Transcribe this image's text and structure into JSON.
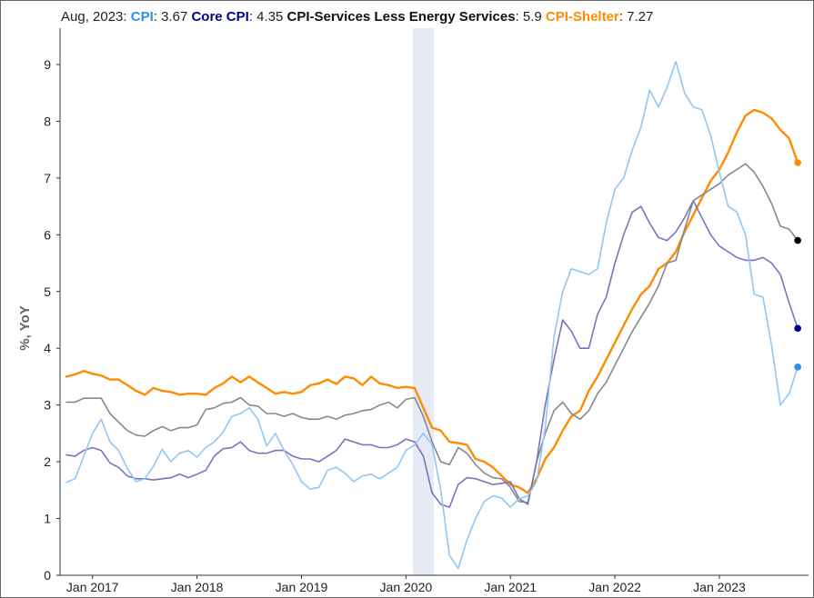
{
  "header": {
    "date": "Aug, 2023:",
    "items": [
      {
        "name": "CPI",
        "value": "3.67"
      },
      {
        "name": "Core CPI",
        "value": "4.35"
      },
      {
        "name": "CPI-Services Less Energy Services",
        "value": "5.9"
      },
      {
        "name": "CPI-Shelter",
        "value": "7.27"
      }
    ]
  },
  "chart_data": {
    "type": "line",
    "title": "Aug, 2023: CPI: 3.67 Core CPI: 4.35 CPI-Services Less Energy Services: 5.9 CPI-Shelter: 7.27",
    "xlabel": "",
    "ylabel": "%, YoY",
    "ylim": [
      0,
      9.8
    ],
    "yticks": [
      0,
      1,
      2,
      3,
      4,
      5,
      6,
      7,
      8,
      9
    ],
    "xticks": [
      {
        "label": "Jan 2017",
        "x": "2017-01"
      },
      {
        "label": "Jan 2018",
        "x": "2018-01"
      },
      {
        "label": "Jan 2019",
        "x": "2019-01"
      },
      {
        "label": "Jan 2020",
        "x": "2020-01"
      },
      {
        "label": "Jan 2021",
        "x": "2021-01"
      },
      {
        "label": "Jan 2022",
        "x": "2022-01"
      },
      {
        "label": "Jan 2023",
        "x": "2023-01"
      }
    ],
    "x_start": "2016-10",
    "x_end": "2023-08",
    "recession_shading": {
      "start": "2020-02",
      "end": "2020-04",
      "color": "#e6ebf3"
    },
    "grid": false,
    "series": [
      {
        "name": "CPI-Shelter",
        "color": "#ff8c00",
        "width": 2.4,
        "values": [
          3.5,
          3.54,
          3.6,
          3.55,
          3.52,
          3.45,
          3.45,
          3.35,
          3.25,
          3.18,
          3.3,
          3.25,
          3.23,
          3.18,
          3.2,
          3.2,
          3.18,
          3.3,
          3.38,
          3.5,
          3.4,
          3.5,
          3.4,
          3.3,
          3.2,
          3.23,
          3.2,
          3.23,
          3.35,
          3.38,
          3.45,
          3.37,
          3.5,
          3.47,
          3.35,
          3.5,
          3.38,
          3.35,
          3.3,
          3.32,
          3.3,
          2.95,
          2.6,
          2.55,
          2.35,
          2.33,
          2.3,
          2.05,
          2.0,
          1.9,
          1.75,
          1.6,
          1.55,
          1.45,
          1.7,
          2.05,
          2.25,
          2.55,
          2.8,
          2.9,
          3.25,
          3.5,
          3.8,
          4.1,
          4.4,
          4.7,
          4.95,
          5.1,
          5.4,
          5.5,
          5.7,
          6.05,
          6.35,
          6.65,
          6.95,
          7.15,
          7.45,
          7.8,
          8.1,
          8.2,
          8.15,
          8.05,
          7.85,
          7.7,
          7.27
        ]
      },
      {
        "name": "CPI-Services Less Energy Services",
        "color": "#888888",
        "width": 1.6,
        "values": [
          3.05,
          3.05,
          3.12,
          3.12,
          3.12,
          2.85,
          2.7,
          2.55,
          2.47,
          2.45,
          2.55,
          2.62,
          2.55,
          2.6,
          2.6,
          2.65,
          2.92,
          2.95,
          3.03,
          3.05,
          3.13,
          3.0,
          2.98,
          2.85,
          2.85,
          2.8,
          2.85,
          2.78,
          2.75,
          2.75,
          2.8,
          2.75,
          2.82,
          2.85,
          2.9,
          2.92,
          3.0,
          3.05,
          2.95,
          3.1,
          3.13,
          2.8,
          2.35,
          2.0,
          1.95,
          2.25,
          2.15,
          1.95,
          1.8,
          1.72,
          1.7,
          1.55,
          1.3,
          1.28,
          2.0,
          2.5,
          2.9,
          3.05,
          2.85,
          2.75,
          2.9,
          3.2,
          3.4,
          3.7,
          4.0,
          4.3,
          4.55,
          4.8,
          5.1,
          5.5,
          5.55,
          6.1,
          6.6,
          6.7,
          6.8,
          6.9,
          7.05,
          7.15,
          7.25,
          7.1,
          6.85,
          6.55,
          6.15,
          6.1,
          5.9
        ]
      },
      {
        "name": "Core CPI",
        "color": "#7b72c0",
        "width": 1.6,
        "values": [
          2.12,
          2.1,
          2.2,
          2.25,
          2.2,
          1.98,
          1.9,
          1.75,
          1.7,
          1.7,
          1.68,
          1.7,
          1.72,
          1.78,
          1.72,
          1.78,
          1.85,
          2.1,
          2.23,
          2.25,
          2.35,
          2.2,
          2.15,
          2.15,
          2.2,
          2.2,
          2.1,
          2.05,
          2.05,
          2.0,
          2.1,
          2.2,
          2.4,
          2.35,
          2.3,
          2.3,
          2.25,
          2.25,
          2.3,
          2.4,
          2.35,
          2.1,
          1.45,
          1.25,
          1.2,
          1.6,
          1.72,
          1.7,
          1.65,
          1.6,
          1.62,
          1.65,
          1.35,
          1.25,
          2.0,
          3.0,
          3.8,
          4.5,
          4.3,
          4.0,
          4.0,
          4.6,
          4.9,
          5.5,
          6.0,
          6.4,
          6.5,
          6.2,
          5.95,
          5.9,
          6.05,
          6.3,
          6.6,
          6.3,
          6.0,
          5.8,
          5.7,
          5.6,
          5.55,
          5.55,
          5.6,
          5.5,
          5.3,
          4.8,
          4.35
        ]
      },
      {
        "name": "CPI",
        "color": "#8fc7f5",
        "width": 1.6,
        "values": [
          1.64,
          1.7,
          2.1,
          2.5,
          2.75,
          2.35,
          2.2,
          1.88,
          1.65,
          1.7,
          1.92,
          2.22,
          2.0,
          2.15,
          2.2,
          2.08,
          2.25,
          2.35,
          2.52,
          2.8,
          2.85,
          2.95,
          2.75,
          2.28,
          2.5,
          2.2,
          1.95,
          1.65,
          1.52,
          1.55,
          1.85,
          1.9,
          1.8,
          1.65,
          1.75,
          1.78,
          1.7,
          1.8,
          1.9,
          2.2,
          2.3,
          2.5,
          2.3,
          1.5,
          0.35,
          0.12,
          0.62,
          1.0,
          1.3,
          1.4,
          1.36,
          1.2,
          1.35,
          1.4,
          1.65,
          2.6,
          4.2,
          5.0,
          5.4,
          5.35,
          5.3,
          5.4,
          6.2,
          6.8,
          7.0,
          7.5,
          7.9,
          8.55,
          8.25,
          8.6,
          9.05,
          8.5,
          8.25,
          8.2,
          7.75,
          7.1,
          6.5,
          6.4,
          6.0,
          4.95,
          4.9,
          4.05,
          3.0,
          3.2,
          3.67
        ]
      }
    ],
    "end_markers": [
      {
        "series": "CPI-Shelter",
        "color": "#ff8c00"
      },
      {
        "series": "CPI-Services Less Energy Services",
        "color": "#000000"
      },
      {
        "series": "Core CPI",
        "color": "#00008b"
      },
      {
        "series": "CPI",
        "color": "#2a8ff0"
      }
    ],
    "header_colors": {
      "CPI": "#2a8ff0",
      "Core CPI": "#00008b",
      "CPI-Services Less Energy Services": "#111111",
      "CPI-Shelter": "#ff8c00"
    }
  }
}
